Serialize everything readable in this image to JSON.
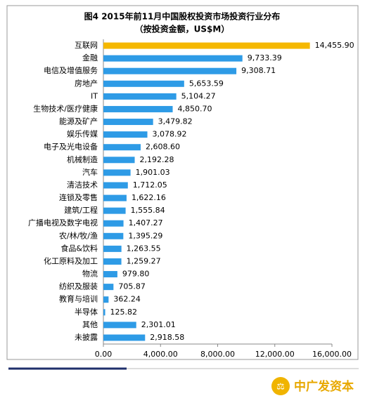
{
  "chart_data": {
    "type": "bar",
    "orientation": "horizontal",
    "title": "图4 2015年前11月中国股权投资市场投资行业分布",
    "subtitle": "（按投资金额，US$M）",
    "categories": [
      "互联网",
      "金融",
      "电信及增值服务",
      "房地产",
      "IT",
      "生物技术/医疗健康",
      "能源及矿产",
      "娱乐传媒",
      "电子及光电设备",
      "机械制造",
      "汽车",
      "清洁技术",
      "连锁及零售",
      "建筑/工程",
      "广播电视及数字电视",
      "农/林/牧/渔",
      "食品&饮料",
      "化工原料及加工",
      "物流",
      "纺织及服装",
      "教育与培训",
      "半导体",
      "其他",
      "未披露"
    ],
    "values": [
      14455.9,
      9733.39,
      9308.71,
      5653.59,
      5104.27,
      4850.7,
      3479.82,
      3078.92,
      2608.6,
      2192.28,
      1901.03,
      1712.05,
      1622.16,
      1555.84,
      1407.27,
      1395.29,
      1263.55,
      1259.27,
      979.8,
      705.87,
      362.24,
      125.82,
      2301.01,
      2918.58
    ],
    "value_labels": [
      "14,455.90",
      "9,733.39",
      "9,308.71",
      "5,653.59",
      "5,104.27",
      "4,850.70",
      "3,479.82",
      "3,078.92",
      "2,608.60",
      "2,192.28",
      "1,901.03",
      "1,712.05",
      "1,622.16",
      "1,555.84",
      "1,407.27",
      "1,395.29",
      "1,263.55",
      "1,259.27",
      "979.80",
      "705.87",
      "362.24",
      "125.82",
      "2,301.01",
      "2,918.58"
    ],
    "colors": [
      "#f5b800",
      "#2e9be6",
      "#2e9be6",
      "#2e9be6",
      "#2e9be6",
      "#2e9be6",
      "#2e9be6",
      "#2e9be6",
      "#2e9be6",
      "#2e9be6",
      "#2e9be6",
      "#2e9be6",
      "#2e9be6",
      "#2e9be6",
      "#2e9be6",
      "#2e9be6",
      "#2e9be6",
      "#2e9be6",
      "#2e9be6",
      "#2e9be6",
      "#2e9be6",
      "#2e9be6",
      "#2e9be6",
      "#2e9be6"
    ],
    "xlim": [
      0,
      16000
    ],
    "xticks": [
      {
        "value": 0,
        "label": "0.00"
      },
      {
        "value": 4000,
        "label": "4,000.00"
      },
      {
        "value": 8000,
        "label": "8,000.00"
      },
      {
        "value": 12000,
        "label": "12,000.00"
      },
      {
        "value": 16000,
        "label": "16,000.00"
      }
    ],
    "grid": false
  },
  "footer": {
    "brand": "中广发资本"
  }
}
